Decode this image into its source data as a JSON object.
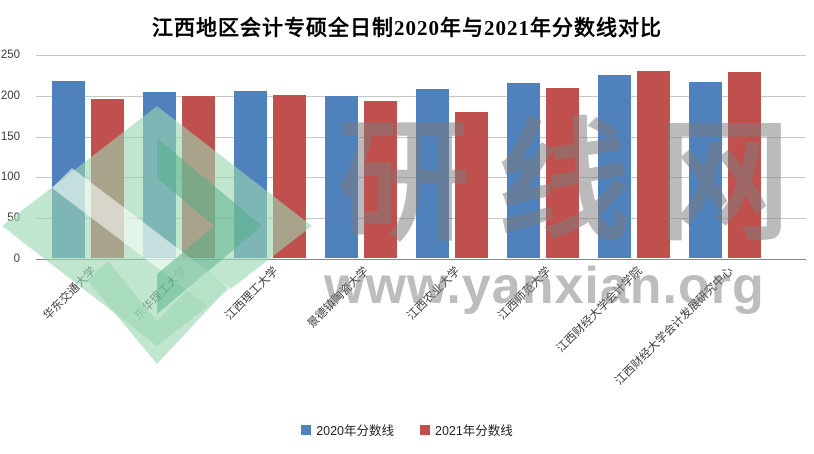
{
  "title": "江西地区会计专硕全日制2020年与2021年分数线对比",
  "watermark": {
    "brand": "研线网",
    "url": "www.yanxian.org",
    "logo": "yanxian-diamond-logo",
    "text_color": "#7c7c7c",
    "logo_color": "#9bd6b2"
  },
  "chart_data": {
    "type": "bar",
    "title": "江西地区会计专硕全日制2020年与2021年分数线对比",
    "categories": [
      "华东交通大学",
      "东华理工大学",
      "江西理工大学",
      "景德镇陶瓷大学",
      "江西农业大学",
      "江西师范大学",
      "江西财经大学会计学院",
      "江西财经大学会计发展研究中心"
    ],
    "series": [
      {
        "name": "2020年分数线",
        "color": "#4F81BD",
        "values": [
          217,
          204,
          205,
          199,
          207,
          214,
          224,
          216
        ]
      },
      {
        "name": "2021年分数线",
        "color": "#C0504D",
        "values": [
          195,
          199,
          200,
          193,
          179,
          208,
          229,
          228
        ]
      }
    ],
    "xlabel": "",
    "ylabel": "",
    "ylim": [
      0,
      250
    ],
    "yticks": [
      0,
      50,
      100,
      150,
      200,
      250
    ],
    "grid": true,
    "legend_position": "bottom"
  }
}
